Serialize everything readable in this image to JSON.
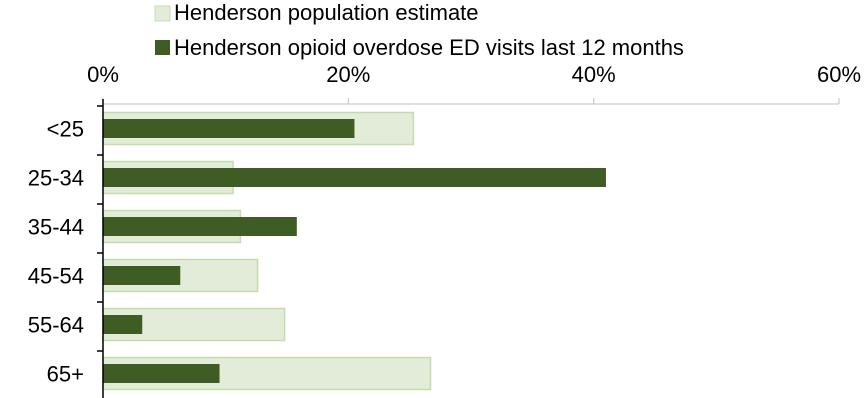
{
  "colors": {
    "population_fill": "#e2ecd9",
    "population_stroke": "#c5dcae",
    "overdose_fill": "#3e5c24",
    "axis": "#000000",
    "grid": "#bfbfbf"
  },
  "chart_data": {
    "type": "bar",
    "orientation": "horizontal",
    "title": "",
    "xlabel": "",
    "ylabel": "",
    "categories": [
      "<25",
      "25-34",
      "35-44",
      "45-54",
      "55-64",
      "65+"
    ],
    "xlim": [
      0,
      60
    ],
    "xticks": [
      "0%",
      "20%",
      "40%",
      "60%"
    ],
    "xtick_values": [
      0,
      20,
      40,
      60
    ],
    "legend_position": "top",
    "series": [
      {
        "name": "Henderson population estimate",
        "color": "#e2ecd9",
        "values": [
          25.3,
          10.6,
          11.2,
          12.6,
          14.8,
          26.7
        ]
      },
      {
        "name": "Henderson opioid overdose ED visits last 12 months",
        "color": "#3e5c24",
        "values": [
          20.5,
          41.0,
          15.8,
          6.3,
          3.2,
          9.5
        ]
      }
    ]
  }
}
